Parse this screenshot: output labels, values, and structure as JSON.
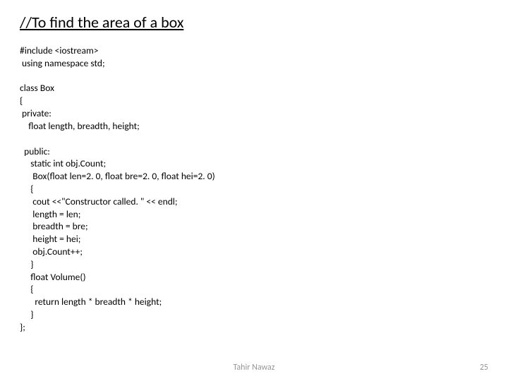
{
  "title": "//To find the area of a box",
  "code_lines": {
    "l1": "#include <iostream>",
    "l2": " using namespace std;",
    "l3": "",
    "l4": "class Box",
    "l5": "{",
    "l6": " private:",
    "l7": "    float length, breadth, height;",
    "l8": "",
    "l9": "  public:",
    "l10": "     static int obj.Count;",
    "l11": "      Box(float len=2. 0, float bre=2. 0, float hei=2. 0)",
    "l12": "     {",
    "l13": "      cout <<\"Constructor called. \" << endl;",
    "l14": "      length = len;",
    "l15": "      breadth = bre;",
    "l16": "      height = hei;",
    "l17": "      obj.Count++;",
    "l18": "     }",
    "l19": "     float Volume()",
    "l20": "     {",
    "l21": "       return length * breadth * height;",
    "l22": "     }",
    "l23": "};"
  },
  "footer": {
    "author": "Tahir Nawaz",
    "page": "25"
  },
  "style": {
    "background_color": "#ffffff",
    "title_fontsize": 22,
    "code_fontsize": 13.5,
    "footer_fontsize": 12,
    "footer_color": "#969696",
    "text_color": "#000000",
    "font_family": "Calibri, Arial, sans-serif"
  }
}
